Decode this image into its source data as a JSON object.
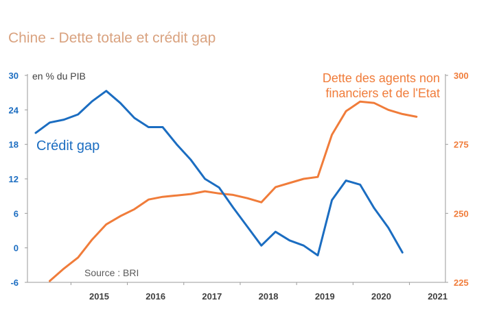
{
  "title": "Chine - Dette totale et crédit gap",
  "colors": {
    "credit": "#1b6dc1",
    "debt": "#f07c3a",
    "axis": "#9a9a9a",
    "title": "#d9a27f"
  },
  "chart_data": {
    "type": "line",
    "title": "Chine - Dette totale et crédit gap",
    "unit_label": "en % du PIB",
    "source": "Source : BRI",
    "x_tick_labels": [
      "2015",
      "2016",
      "2017",
      "2018",
      "2019",
      "2020",
      "2021"
    ],
    "x": [
      "2014-Q2",
      "2014-Q3",
      "2014-Q4",
      "2015-Q1",
      "2015-Q2",
      "2015-Q3",
      "2015-Q4",
      "2016-Q1",
      "2016-Q2",
      "2016-Q3",
      "2016-Q4",
      "2017-Q1",
      "2017-Q2",
      "2017-Q3",
      "2017-Q4",
      "2018-Q1",
      "2018-Q2",
      "2018-Q3",
      "2018-Q4",
      "2019-Q1",
      "2019-Q2",
      "2019-Q3",
      "2019-Q4",
      "2020-Q1",
      "2020-Q2",
      "2020-Q3",
      "2020-Q4",
      "2021-Q1"
    ],
    "y_left": {
      "min": -6,
      "max": 30,
      "ticks": [
        "30",
        "24",
        "18",
        "12",
        "6",
        "0",
        "-6"
      ]
    },
    "y_right": {
      "min": 225,
      "max": 300,
      "ticks": [
        "300",
        "275",
        "250",
        "225"
      ]
    },
    "series": [
      {
        "name": "Crédit gap",
        "axis": "left",
        "label": "Crédit gap",
        "values": [
          20,
          21.8,
          22.3,
          23.2,
          25.5,
          27.3,
          25.2,
          22.6,
          21,
          21,
          18,
          15.3,
          12,
          10.5,
          7,
          3.7,
          0.4,
          2.8,
          1.3,
          0.4,
          -1.3,
          8.3,
          11.7,
          11,
          6.9,
          3.5,
          -0.8,
          null
        ]
      },
      {
        "name": "Dette des agents non financiers et de l'Etat",
        "axis": "right",
        "label_lines": [
          "Dette des agents non",
          "financiers et de l'Etat"
        ],
        "values": [
          null,
          225.5,
          230,
          234,
          240.5,
          246,
          249,
          251.5,
          255,
          256,
          256.5,
          257,
          258,
          257.2,
          256.7,
          255.5,
          254,
          259.5,
          261,
          262.5,
          263.2,
          278.5,
          287,
          290.5,
          290,
          287.5,
          286,
          285
        ]
      }
    ]
  }
}
